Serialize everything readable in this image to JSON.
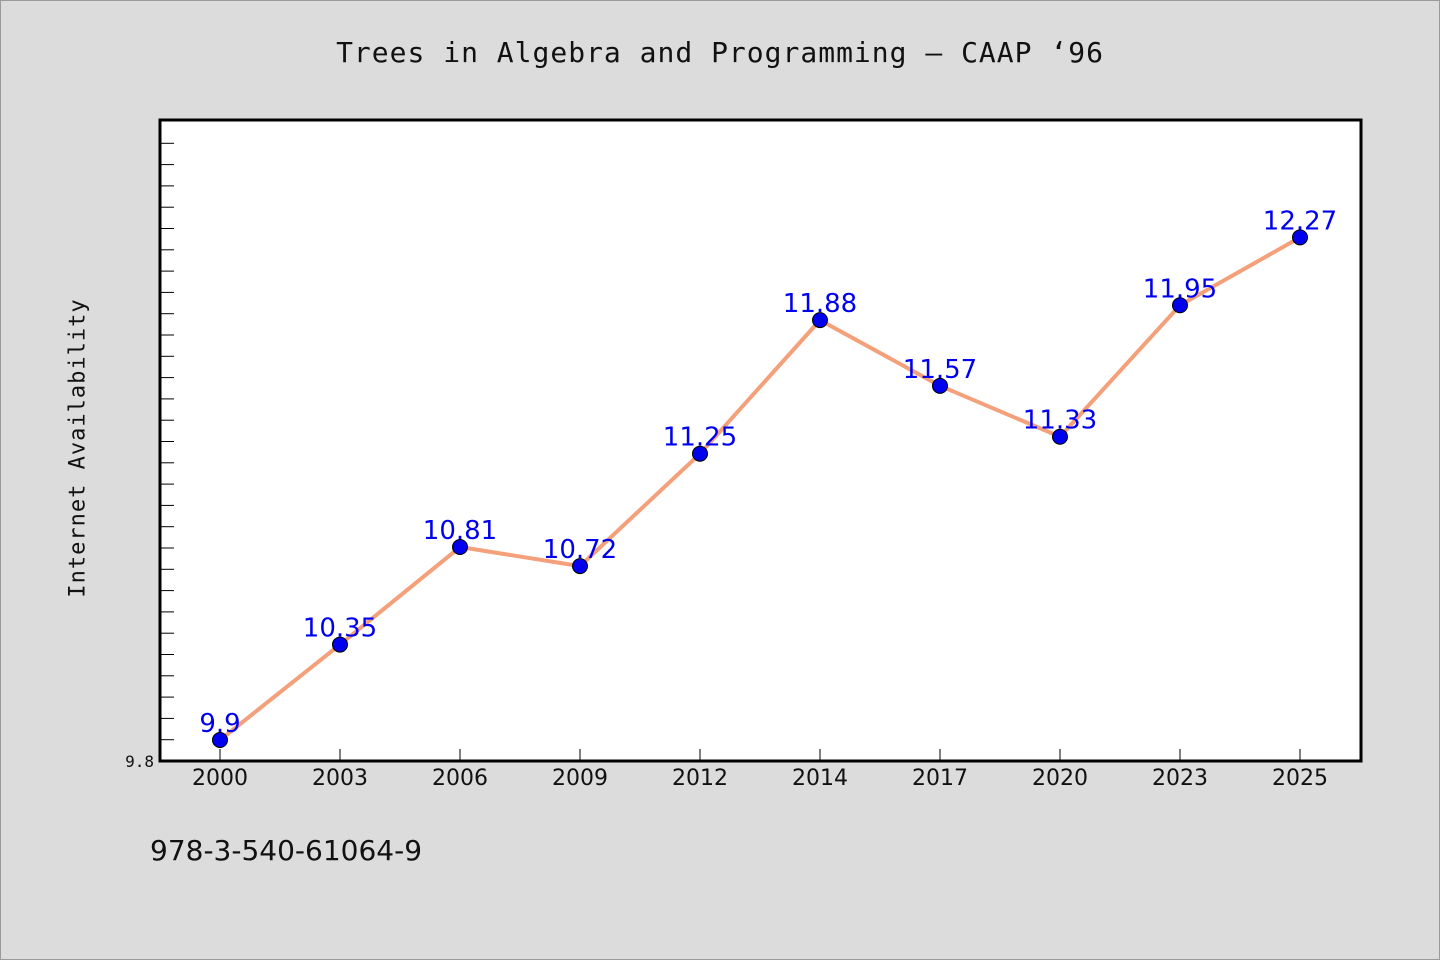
{
  "chart_data": {
    "type": "line",
    "title": "Trees in Algebra and Programming – CAAP  ‘96",
    "xlabel": "",
    "ylabel": "Internet Availability",
    "categories": [
      "2000",
      "2003",
      "2006",
      "2009",
      "2012",
      "2014",
      "2017",
      "2020",
      "2023",
      "2025"
    ],
    "series": [
      {
        "values": [
          9.9,
          10.35,
          10.81,
          10.72,
          11.25,
          11.88,
          11.57,
          11.33,
          11.95,
          12.27
        ],
        "labels": [
          "9.9",
          "10.35",
          "10.81",
          "10.72",
          "11.25",
          "11.88",
          "11.57",
          "11.33",
          "11.95",
          "12.27"
        ]
      }
    ],
    "ylim": [
      9.8,
      12.8
    ],
    "yticks_labeled": [
      "9.8"
    ],
    "grid": false,
    "colors": {
      "line": "#f4a07a",
      "marker": "#0000ee",
      "label": "#0000ee"
    }
  },
  "footer": {
    "isbn": "978-3-540-61064-9"
  }
}
